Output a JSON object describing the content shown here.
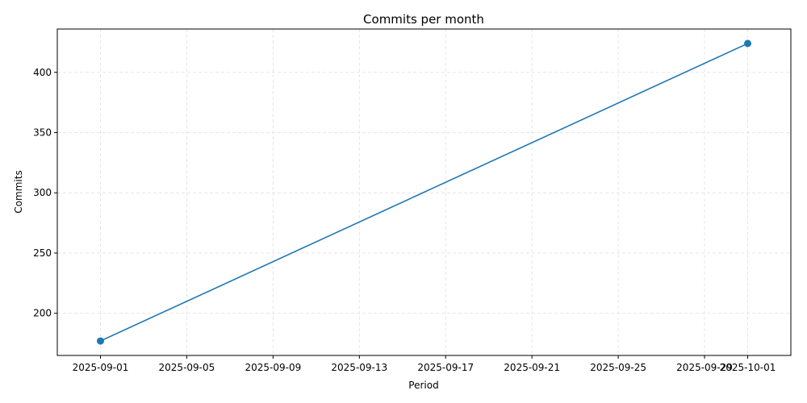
{
  "chart_data": {
    "type": "line",
    "title": "Commits per month",
    "xlabel": "Period",
    "ylabel": "Commits",
    "x": [
      "2025-09-01",
      "2025-10-01"
    ],
    "series": [
      {
        "values": [
          177,
          424
        ],
        "color": "#1f77b4",
        "marker": "circle"
      }
    ],
    "x_ticks": [
      "2025-09-01",
      "2025-09-05",
      "2025-09-09",
      "2025-09-13",
      "2025-09-17",
      "2025-09-21",
      "2025-09-25",
      "2025-09-29",
      "2025-10-01"
    ],
    "y_ticks": [
      200,
      250,
      300,
      350,
      400
    ],
    "xlim": [
      "2025-08-30",
      "2025-10-03"
    ],
    "ylim": [
      165,
      436
    ],
    "grid": true
  }
}
